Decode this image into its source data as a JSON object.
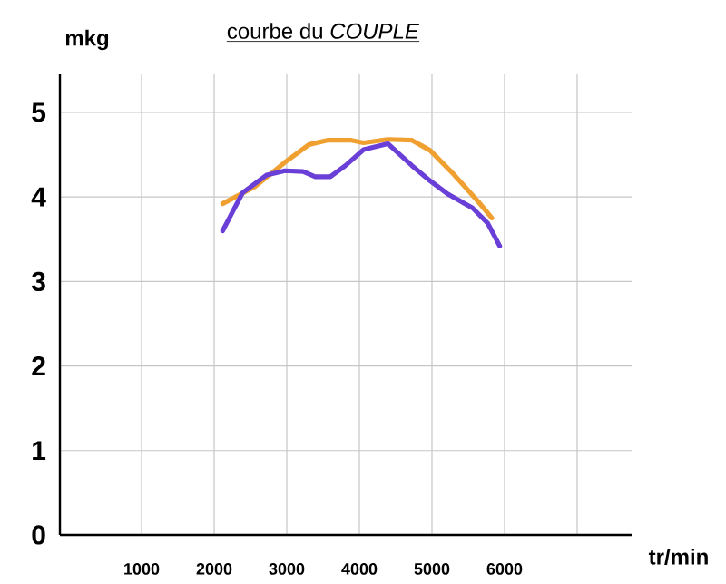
{
  "chart_data": {
    "type": "line",
    "title": "courbe du *COUPLE*",
    "xlabel": "tr/min",
    "ylabel": "mkg",
    "xlim": [
      -125,
      7750
    ],
    "ylim": [
      0,
      5.45
    ],
    "xticks": [
      1000,
      2000,
      3000,
      4000,
      5000,
      6000,
      {
        "value": 7000,
        "label": null
      }
    ],
    "yticks": [
      0,
      1,
      2,
      3,
      4,
      5
    ],
    "grid": true,
    "marker": "none",
    "line_style": "solid",
    "series": [
      {
        "color": "#f0a030",
        "x": [
          2117,
          2558,
          2975,
          3308,
          3558,
          3892,
          4058,
          4392,
          4725,
          4975,
          5308,
          5642,
          5825
        ],
        "values": [
          3.92,
          4.12,
          4.41,
          4.62,
          4.67,
          4.67,
          4.64,
          4.68,
          4.67,
          4.55,
          4.26,
          3.94,
          3.75
        ]
      },
      {
        "color": "#6a3fd8",
        "x": [
          2117,
          2392,
          2725,
          2975,
          3225,
          3392,
          3600,
          3808,
          4058,
          4392,
          4725,
          4975,
          5225,
          5558,
          5767,
          5933
        ],
        "values": [
          3.6,
          4.05,
          4.26,
          4.31,
          4.3,
          4.24,
          4.24,
          4.37,
          4.56,
          4.63,
          4.37,
          4.19,
          4.03,
          3.87,
          3.69,
          3.42
        ]
      }
    ]
  }
}
